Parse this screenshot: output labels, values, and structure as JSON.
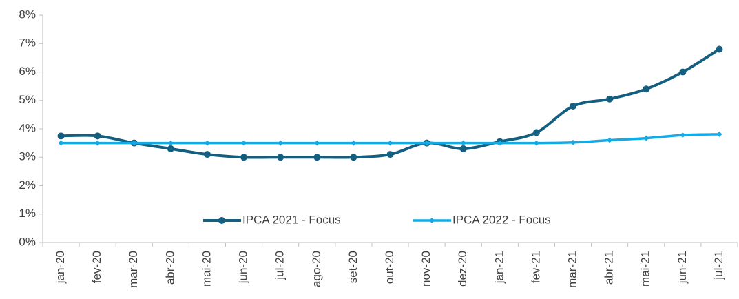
{
  "chart_data": {
    "type": "line",
    "categories": [
      "jan-20",
      "fev-20",
      "mar-20",
      "abr-20",
      "mai-20",
      "jun-20",
      "jul-20",
      "ago-20",
      "set-20",
      "out-20",
      "nov-20",
      "dez-20",
      "jan-21",
      "fev-21",
      "mar-21",
      "abr-21",
      "mai-21",
      "jun-21",
      "jul-21"
    ],
    "series": [
      {
        "name": "IPCA 2021 - Focus",
        "color": "#145f80",
        "marker": "circle",
        "values": [
          3.75,
          3.75,
          3.5,
          3.3,
          3.1,
          3.0,
          3.0,
          3.0,
          3.0,
          3.1,
          3.5,
          3.3,
          3.55,
          3.87,
          4.8,
          5.05,
          5.4,
          6.0,
          6.8
        ]
      },
      {
        "name": "IPCA 2022 - Focus",
        "color": "#14aae6",
        "marker": "diamond",
        "values": [
          3.5,
          3.5,
          3.5,
          3.5,
          3.5,
          3.5,
          3.5,
          3.5,
          3.5,
          3.5,
          3.5,
          3.5,
          3.5,
          3.5,
          3.52,
          3.6,
          3.67,
          3.78,
          3.81
        ]
      }
    ],
    "ylim": [
      0,
      8
    ],
    "yticks": [
      {
        "value": 0,
        "label": "0%"
      },
      {
        "value": 1,
        "label": "1%"
      },
      {
        "value": 2,
        "label": "2%"
      },
      {
        "value": 3,
        "label": "3%"
      },
      {
        "value": 4,
        "label": "4%"
      },
      {
        "value": 5,
        "label": "5%"
      },
      {
        "value": 6,
        "label": "6%"
      },
      {
        "value": 7,
        "label": "7%"
      },
      {
        "value": 8,
        "label": "8%"
      }
    ],
    "grid": false
  }
}
